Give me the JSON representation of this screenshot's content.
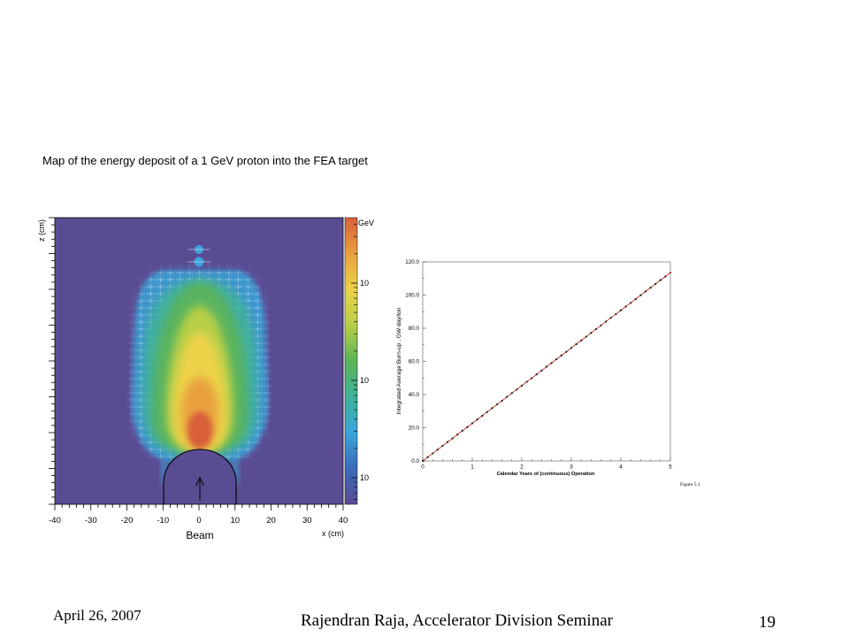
{
  "slide": {
    "footer": {
      "date": "April 26, 2007",
      "presenter": "Rajendran Raja, Accelerator Division Seminar",
      "page_number": "19"
    }
  },
  "chart_data": [
    {
      "type": "heatmap",
      "title": "Map of the energy deposit of a 1 GeV proton into the FEA target",
      "xlabel": "x (cm)",
      "ylabel": "z (cm)",
      "xlim": [
        -40,
        40
      ],
      "xticks": [
        -40,
        -30,
        -20,
        -10,
        0,
        10,
        20,
        30,
        40
      ],
      "annotation": "Beam",
      "colorbar": {
        "label": "GeV",
        "scale": "log",
        "tick_labels": [
          "10",
          "10",
          "10"
        ],
        "colors": [
          "#d8603a",
          "#e9a03e",
          "#ecd24a",
          "#b7cf47",
          "#5bb458",
          "#3fb29a",
          "#3ba5da",
          "#3a6cbb",
          "#5a4c93"
        ]
      },
      "background_color": "#5a4c93",
      "grid": false
    },
    {
      "type": "line",
      "xlabel": "Calendar Years of (continuous) Operation",
      "ylabel": "Integrated Average Burn-up , GW day/ton",
      "xlim": [
        0,
        5
      ],
      "ylim": [
        0,
        120
      ],
      "xticks": [
        0,
        1,
        2,
        3,
        4,
        5
      ],
      "yticks": [
        "0.0",
        "20.0",
        "40.0",
        "60.0",
        "80.0",
        "100.0",
        "120.0"
      ],
      "x": [
        0,
        0.1,
        0.2,
        0.3,
        0.4,
        0.5,
        0.6,
        0.7,
        0.8,
        0.9,
        1,
        1.1,
        1.2,
        1.3,
        1.4,
        1.5,
        1.6,
        1.7,
        1.8,
        1.9,
        2,
        2.1,
        2.2,
        2.3,
        2.4,
        2.5,
        2.6,
        2.7,
        2.8,
        2.9,
        3,
        3.1,
        3.2,
        3.3,
        3.4,
        3.5,
        3.6,
        3.7,
        3.8,
        3.9,
        4,
        4.1,
        4.2,
        4.3,
        4.4,
        4.5,
        4.6,
        4.7,
        4.8,
        4.9,
        5
      ],
      "series": [
        {
          "values": [
            0,
            2.3,
            4.5,
            6.8,
            9.1,
            11.4,
            13.6,
            15.9,
            18.2,
            20.4,
            22.7,
            25.0,
            27.2,
            29.5,
            31.8,
            34.1,
            36.3,
            38.6,
            40.9,
            43.1,
            45.4,
            47.7,
            49.9,
            52.2,
            54.5,
            56.8,
            59.0,
            61.3,
            63.6,
            65.8,
            68.1,
            70.4,
            72.6,
            74.9,
            77.2,
            79.5,
            81.7,
            84.0,
            86.3,
            88.5,
            90.8,
            93.1,
            95.3,
            97.6,
            99.9,
            102.2,
            104.4,
            106.7,
            109.0,
            111.2,
            113.5
          ],
          "line_color": "#c62a1f",
          "marker_color": "#1a1a1a"
        }
      ],
      "caption": "Figure 5.1",
      "grid": false
    }
  ]
}
